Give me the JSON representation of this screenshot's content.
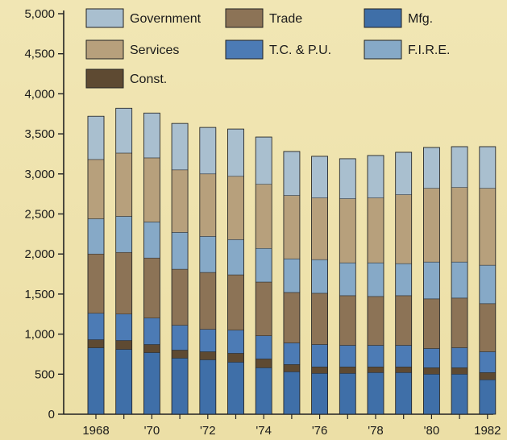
{
  "chart_data": {
    "type": "bar",
    "stacked": true,
    "title": "",
    "xlabel": "",
    "ylabel": "",
    "ylim": [
      0,
      5000
    ],
    "yticks": [
      0,
      500,
      1000,
      1500,
      2000,
      2500,
      3000,
      3500,
      4000,
      4500,
      5000
    ],
    "ytick_labels": [
      "0",
      "500",
      "1,000",
      "1,500",
      "2,000",
      "2,500",
      "3,000",
      "3,500",
      "4,000",
      "4,500",
      "5,000"
    ],
    "categories": [
      "1968",
      "1969",
      "1970",
      "1971",
      "1972",
      "1973",
      "1974",
      "1975",
      "1976",
      "1977",
      "1978",
      "1979",
      "1980",
      "1981",
      "1982"
    ],
    "category_labels": [
      "1968",
      "",
      "'70",
      "",
      "'72",
      "",
      "'74",
      "",
      "'76",
      "",
      "'78",
      "",
      "'80",
      "",
      "1982"
    ],
    "grid": false,
    "legend_position": "top",
    "series": [
      {
        "name": "Mfg.",
        "color": "#3f6fa8",
        "values": [
          830,
          810,
          770,
          700,
          680,
          650,
          580,
          530,
          510,
          510,
          520,
          520,
          500,
          500,
          430
        ]
      },
      {
        "name": "Const.",
        "color": "#5e4a32",
        "values": [
          100,
          110,
          100,
          100,
          100,
          110,
          110,
          90,
          80,
          80,
          70,
          70,
          80,
          80,
          90
        ]
      },
      {
        "name": "T.C. & P.U.",
        "color": "#4c7bb5",
        "values": [
          330,
          330,
          330,
          310,
          280,
          290,
          290,
          270,
          280,
          270,
          270,
          270,
          240,
          250,
          260
        ]
      },
      {
        "name": "Trade",
        "color": "#8c7356",
        "values": [
          740,
          770,
          750,
          700,
          710,
          690,
          670,
          630,
          640,
          620,
          610,
          620,
          620,
          620,
          600
        ]
      },
      {
        "name": "F.I.R.E.",
        "color": "#86a9c7",
        "values": [
          440,
          450,
          450,
          460,
          450,
          440,
          420,
          420,
          420,
          410,
          420,
          400,
          460,
          450,
          480
        ]
      },
      {
        "name": "Services",
        "color": "#b7a07c",
        "values": [
          740,
          790,
          800,
          780,
          780,
          790,
          800,
          790,
          770,
          800,
          810,
          860,
          920,
          930,
          960
        ]
      },
      {
        "name": "Government",
        "color": "#a9bfcf",
        "values": [
          540,
          560,
          560,
          580,
          580,
          590,
          590,
          550,
          520,
          500,
          530,
          530,
          510,
          510,
          520
        ]
      }
    ],
    "legend_order": [
      "Government",
      "Trade",
      "Mfg.",
      "Services",
      "T.C. & P.U.",
      "F.I.R.E.",
      "Const."
    ]
  }
}
